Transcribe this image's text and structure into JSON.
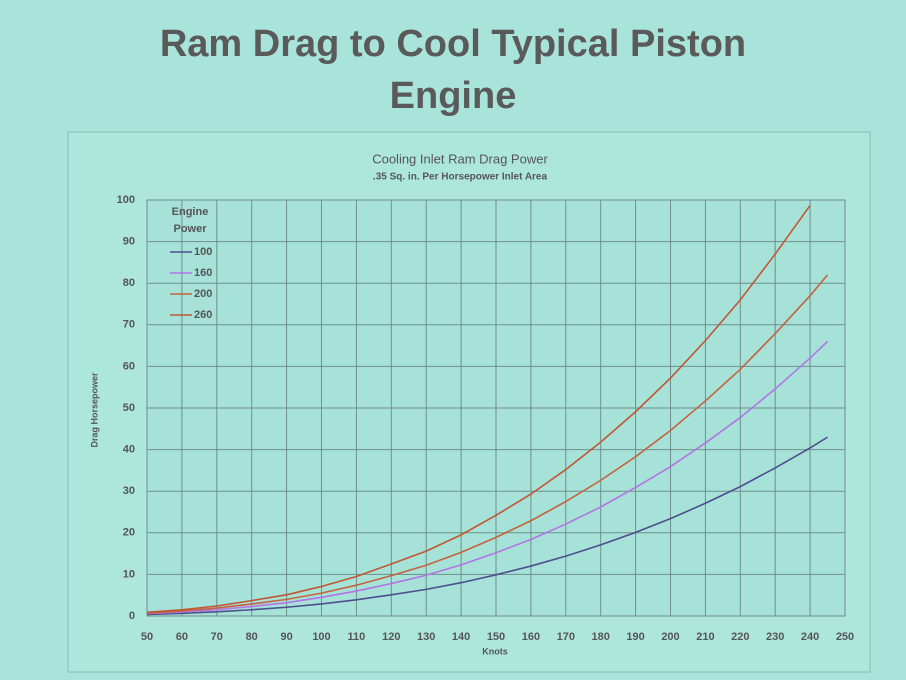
{
  "slide_title": "Ram Drag to Cool Typical Piston Engine",
  "chart_data": {
    "type": "line",
    "title": "Cooling Inlet Ram Drag Power",
    "subtitle": ".35 Sq. in. Per Horsepower Inlet Area",
    "x_label": "Knots",
    "y_label": "Drag Horsepower",
    "legend_title": "Engine Power",
    "x": [
      50,
      60,
      70,
      80,
      90,
      100,
      110,
      120,
      130,
      140,
      150,
      160,
      170,
      180,
      190,
      200,
      210,
      220,
      230,
      240,
      245
    ],
    "series": [
      {
        "name": "100",
        "color": "#4c4f8c",
        "values": [
          0.37,
          0.63,
          1.0,
          1.5,
          2.1,
          2.9,
          3.9,
          5.1,
          6.4,
          8.0,
          9.9,
          12.0,
          14.4,
          17.1,
          20.1,
          23.4,
          27.1,
          31.1,
          35.6,
          40.4,
          43
        ]
      },
      {
        "name": "160",
        "color": "#b374e6",
        "values": [
          0.57,
          0.97,
          1.5,
          2.3,
          3.2,
          4.5,
          6.0,
          7.8,
          9.8,
          12.3,
          15.2,
          18.4,
          22.1,
          26.2,
          30.9,
          35.9,
          41.6,
          47.7,
          54.6,
          62.0,
          66
        ]
      },
      {
        "name": "200",
        "color": "#c4643e",
        "values": [
          0.71,
          1.2,
          1.9,
          2.9,
          4.0,
          5.5,
          7.4,
          9.7,
          12.2,
          15.3,
          18.9,
          22.9,
          27.5,
          32.6,
          38.3,
          44.6,
          51.7,
          59.3,
          67.9,
          77.0,
          82
        ]
      },
      {
        "name": "260",
        "color": "#c25634",
        "values": [
          0.9,
          1.5,
          2.4,
          3.7,
          5.1,
          7.1,
          9.5,
          12.5,
          15.6,
          19.5,
          24.2,
          29.3,
          35.2,
          41.8,
          49.1,
          57.2,
          66.2,
          76.0,
          87.0,
          98.7,
          null
        ]
      }
    ],
    "xlim": [
      50,
      250
    ],
    "xticks": [
      50,
      60,
      70,
      80,
      90,
      100,
      110,
      120,
      130,
      140,
      150,
      160,
      170,
      180,
      190,
      200,
      210,
      220,
      230,
      240,
      250
    ],
    "ylim": [
      0,
      100
    ],
    "yticks": [
      0,
      10,
      20,
      30,
      40,
      50,
      60,
      70,
      80,
      90,
      100
    ],
    "grid": true
  }
}
